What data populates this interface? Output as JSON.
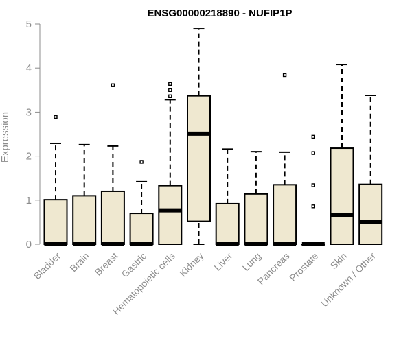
{
  "chart_data": {
    "type": "boxplot",
    "title": "ENSG00000218890 - NUFIP1P",
    "xlabel": "",
    "ylabel": "Expression",
    "ylim": [
      0,
      5
    ],
    "yticks": [
      0,
      1,
      2,
      3,
      4,
      5
    ],
    "box_fill": "#efe8d0",
    "categories": [
      "Bladder",
      "Brain",
      "Breast",
      "Gastric",
      "Hematopoietic cells",
      "Kidney",
      "Liver",
      "Lung",
      "Pancreas",
      "Prostate",
      "Skin",
      "Unknown / Other"
    ],
    "boxes": [
      {
        "min": 0,
        "q1": 0,
        "median": 0,
        "q3": 1.01,
        "max": 2.29,
        "outliers": [
          2.89
        ]
      },
      {
        "min": 0,
        "q1": 0,
        "median": 0,
        "q3": 1.1,
        "max": 2.26,
        "outliers": []
      },
      {
        "min": 0,
        "q1": 0,
        "median": 0,
        "q3": 1.2,
        "max": 2.23,
        "outliers": [
          3.61
        ]
      },
      {
        "min": 0,
        "q1": 0,
        "median": 0,
        "q3": 0.7,
        "max": 1.42,
        "outliers": [
          1.87
        ]
      },
      {
        "min": 0,
        "q1": 0,
        "median": 0.77,
        "q3": 1.33,
        "max": 3.28,
        "outliers": [
          3.36,
          3.5,
          3.64
        ]
      },
      {
        "min": 0,
        "q1": 0.52,
        "median": 2.51,
        "q3": 3.37,
        "max": 4.89,
        "outliers": []
      },
      {
        "min": 0,
        "q1": 0,
        "median": 0,
        "q3": 0.92,
        "max": 2.16,
        "outliers": []
      },
      {
        "min": 0,
        "q1": 0,
        "median": 0,
        "q3": 1.14,
        "max": 2.1,
        "outliers": []
      },
      {
        "min": 0,
        "q1": 0,
        "median": 0,
        "q3": 1.35,
        "max": 2.09,
        "outliers": [
          3.84
        ]
      },
      {
        "min": 0,
        "q1": 0,
        "median": 0,
        "q3": 0,
        "max": 0,
        "outliers": [
          0.86,
          1.34,
          2.07,
          2.44
        ]
      },
      {
        "min": 0,
        "q1": 0,
        "median": 0.66,
        "q3": 2.18,
        "max": 4.08,
        "outliers": []
      },
      {
        "min": 0,
        "q1": 0,
        "median": 0.5,
        "q3": 1.36,
        "max": 3.38,
        "outliers": []
      }
    ]
  }
}
